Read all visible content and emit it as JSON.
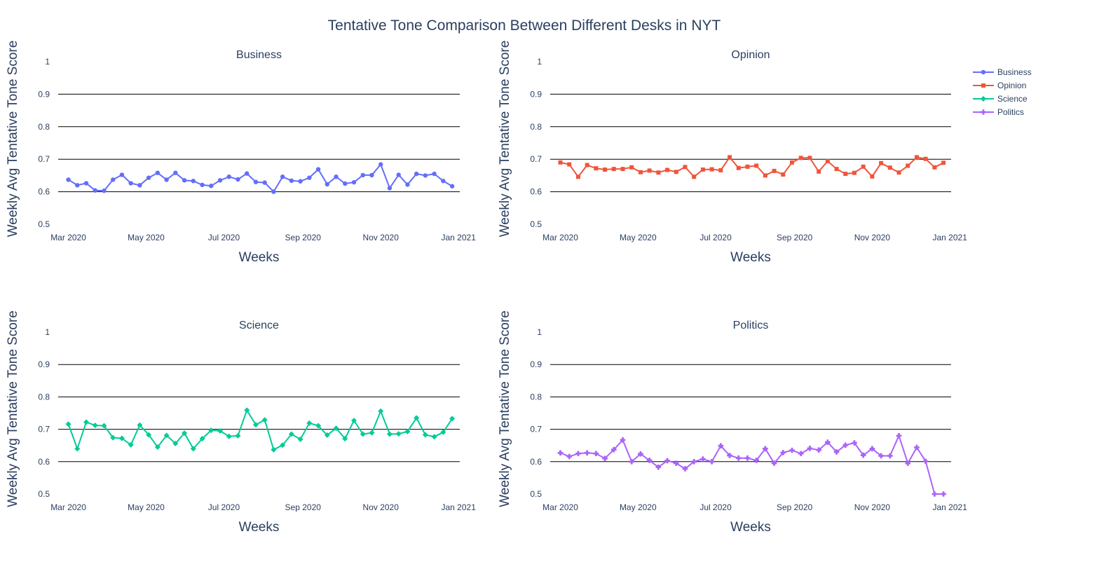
{
  "title": "Tentative Tone Comparison Between Different Desks in NYT",
  "legend": {
    "placement": "top-right",
    "items": [
      {
        "name": "Business",
        "color": "#636efa",
        "marker": "circle"
      },
      {
        "name": "Opinion",
        "color": "#ef553b",
        "marker": "square"
      },
      {
        "name": "Science",
        "color": "#00cc96",
        "marker": "diamond"
      },
      {
        "name": "Politics",
        "color": "#ab63fa",
        "marker": "cross"
      }
    ]
  },
  "chart_data": [
    {
      "type": "line",
      "title": "Business",
      "xlabel": "Weeks",
      "ylabel": "Weekly Avg Tentative Tone Score",
      "ylim": [
        0.5,
        1
      ],
      "yticks": [
        "0.5",
        "0.6",
        "0.7",
        "0.8",
        "0.9",
        "1"
      ],
      "xticks": [
        "Mar 2020",
        "May 2020",
        "Jul 2020",
        "Sep 2020",
        "Nov 2020",
        "Jan 2021"
      ],
      "grid": true,
      "x": [
        "2020-03-01",
        "2020-03-08",
        "2020-03-15",
        "2020-03-22",
        "2020-03-29",
        "2020-04-05",
        "2020-04-12",
        "2020-04-19",
        "2020-04-26",
        "2020-05-03",
        "2020-05-10",
        "2020-05-17",
        "2020-05-24",
        "2020-05-31",
        "2020-06-07",
        "2020-06-14",
        "2020-06-21",
        "2020-06-28",
        "2020-07-05",
        "2020-07-12",
        "2020-07-19",
        "2020-07-26",
        "2020-08-02",
        "2020-08-09",
        "2020-08-16",
        "2020-08-23",
        "2020-08-30",
        "2020-09-06",
        "2020-09-13",
        "2020-09-20",
        "2020-09-27",
        "2020-10-04",
        "2020-10-11",
        "2020-10-18",
        "2020-10-25",
        "2020-11-01",
        "2020-11-08",
        "2020-11-15",
        "2020-11-22",
        "2020-11-29",
        "2020-12-06",
        "2020-12-13",
        "2020-12-20",
        "2020-12-27"
      ],
      "series": [
        {
          "name": "Business",
          "color": "#636efa",
          "marker": "circle",
          "values": [
            0.637,
            0.62,
            0.626,
            0.604,
            0.603,
            0.637,
            0.652,
            0.626,
            0.62,
            0.643,
            0.658,
            0.637,
            0.658,
            0.635,
            0.633,
            0.621,
            0.618,
            0.635,
            0.646,
            0.638,
            0.656,
            0.63,
            0.628,
            0.6,
            0.646,
            0.634,
            0.632,
            0.643,
            0.669,
            0.623,
            0.646,
            0.625,
            0.629,
            0.651,
            0.651,
            0.684,
            0.611,
            0.652,
            0.622,
            0.655,
            0.65,
            0.655,
            0.633,
            0.617
          ]
        }
      ]
    },
    {
      "type": "line",
      "title": "Opinion",
      "xlabel": "Weeks",
      "ylabel": "Weekly Avg Tentative Tone Score",
      "ylim": [
        0.5,
        1
      ],
      "yticks": [
        "0.5",
        "0.6",
        "0.7",
        "0.8",
        "0.9",
        "1"
      ],
      "xticks": [
        "Mar 2020",
        "May 2020",
        "Jul 2020",
        "Sep 2020",
        "Nov 2020",
        "Jan 2021"
      ],
      "grid": true,
      "x": [
        "2020-03-01",
        "2020-03-08",
        "2020-03-15",
        "2020-03-22",
        "2020-03-29",
        "2020-04-05",
        "2020-04-12",
        "2020-04-19",
        "2020-04-26",
        "2020-05-03",
        "2020-05-10",
        "2020-05-17",
        "2020-05-24",
        "2020-05-31",
        "2020-06-07",
        "2020-06-14",
        "2020-06-21",
        "2020-06-28",
        "2020-07-05",
        "2020-07-12",
        "2020-07-19",
        "2020-07-26",
        "2020-08-02",
        "2020-08-09",
        "2020-08-16",
        "2020-08-23",
        "2020-08-30",
        "2020-09-06",
        "2020-09-13",
        "2020-09-20",
        "2020-09-27",
        "2020-10-04",
        "2020-10-11",
        "2020-10-18",
        "2020-10-25",
        "2020-11-01",
        "2020-11-08",
        "2020-11-15",
        "2020-11-22",
        "2020-11-29",
        "2020-12-06",
        "2020-12-13",
        "2020-12-20",
        "2020-12-27"
      ],
      "series": [
        {
          "name": "Opinion",
          "color": "#ef553b",
          "marker": "square",
          "values": [
            0.69,
            0.684,
            0.646,
            0.682,
            0.672,
            0.668,
            0.67,
            0.67,
            0.675,
            0.66,
            0.665,
            0.659,
            0.667,
            0.661,
            0.676,
            0.646,
            0.668,
            0.669,
            0.666,
            0.706,
            0.673,
            0.677,
            0.68,
            0.65,
            0.664,
            0.653,
            0.69,
            0.704,
            0.704,
            0.662,
            0.694,
            0.67,
            0.655,
            0.658,
            0.677,
            0.647,
            0.688,
            0.674,
            0.659,
            0.68,
            0.706,
            0.701,
            0.675,
            0.689
          ]
        }
      ]
    },
    {
      "type": "line",
      "title": "Science",
      "xlabel": "Weeks",
      "ylabel": "Weekly Avg Tentative Tone Score",
      "ylim": [
        0.5,
        1
      ],
      "yticks": [
        "0.5",
        "0.6",
        "0.7",
        "0.8",
        "0.9",
        "1"
      ],
      "xticks": [
        "Mar 2020",
        "May 2020",
        "Jul 2020",
        "Sep 2020",
        "Nov 2020",
        "Jan 2021"
      ],
      "grid": true,
      "x": [
        "2020-03-01",
        "2020-03-08",
        "2020-03-15",
        "2020-03-22",
        "2020-03-29",
        "2020-04-05",
        "2020-04-12",
        "2020-04-19",
        "2020-04-26",
        "2020-05-03",
        "2020-05-10",
        "2020-05-17",
        "2020-05-24",
        "2020-05-31",
        "2020-06-07",
        "2020-06-14",
        "2020-06-21",
        "2020-06-28",
        "2020-07-05",
        "2020-07-12",
        "2020-07-19",
        "2020-07-26",
        "2020-08-02",
        "2020-08-09",
        "2020-08-16",
        "2020-08-23",
        "2020-08-30",
        "2020-09-06",
        "2020-09-13",
        "2020-09-20",
        "2020-09-27",
        "2020-10-04",
        "2020-10-11",
        "2020-10-18",
        "2020-10-25",
        "2020-11-01",
        "2020-11-08",
        "2020-11-15",
        "2020-11-22",
        "2020-11-29",
        "2020-12-06",
        "2020-12-13",
        "2020-12-20",
        "2020-12-27"
      ],
      "series": [
        {
          "name": "Science",
          "color": "#00cc96",
          "marker": "diamond",
          "values": [
            0.716,
            0.64,
            0.722,
            0.712,
            0.711,
            0.674,
            0.672,
            0.652,
            0.713,
            0.683,
            0.645,
            0.681,
            0.656,
            0.688,
            0.64,
            0.671,
            0.697,
            0.695,
            0.678,
            0.68,
            0.759,
            0.714,
            0.729,
            0.637,
            0.651,
            0.685,
            0.669,
            0.719,
            0.711,
            0.682,
            0.703,
            0.671,
            0.727,
            0.685,
            0.689,
            0.756,
            0.685,
            0.686,
            0.693,
            0.735,
            0.683,
            0.677,
            0.691,
            0.733
          ]
        }
      ]
    },
    {
      "type": "line",
      "title": "Politics",
      "xlabel": "Weeks",
      "ylabel": "Weekly Avg Tentative Tone Score",
      "ylim": [
        0.5,
        1
      ],
      "yticks": [
        "0.5",
        "0.6",
        "0.7",
        "0.8",
        "0.9",
        "1"
      ],
      "xticks": [
        "Mar 2020",
        "May 2020",
        "Jul 2020",
        "Sep 2020",
        "Nov 2020",
        "Jan 2021"
      ],
      "grid": true,
      "x": [
        "2020-03-01",
        "2020-03-08",
        "2020-03-15",
        "2020-03-22",
        "2020-03-29",
        "2020-04-05",
        "2020-04-12",
        "2020-04-19",
        "2020-04-26",
        "2020-05-03",
        "2020-05-10",
        "2020-05-17",
        "2020-05-24",
        "2020-05-31",
        "2020-06-07",
        "2020-06-14",
        "2020-06-21",
        "2020-06-28",
        "2020-07-05",
        "2020-07-12",
        "2020-07-19",
        "2020-07-26",
        "2020-08-02",
        "2020-08-09",
        "2020-08-16",
        "2020-08-23",
        "2020-08-30",
        "2020-09-06",
        "2020-09-13",
        "2020-09-20",
        "2020-09-27",
        "2020-10-04",
        "2020-10-11",
        "2020-10-18",
        "2020-10-25",
        "2020-11-01",
        "2020-11-08",
        "2020-11-15",
        "2020-11-22",
        "2020-11-29",
        "2020-12-06",
        "2020-12-13",
        "2020-12-20",
        "2020-12-27"
      ],
      "series": [
        {
          "name": "Politics",
          "color": "#ab63fa",
          "marker": "cross",
          "values": [
            0.627,
            0.616,
            0.625,
            0.627,
            0.625,
            0.61,
            0.637,
            0.667,
            0.6,
            0.624,
            0.604,
            0.583,
            0.603,
            0.595,
            0.578,
            0.6,
            0.608,
            0.6,
            0.649,
            0.619,
            0.611,
            0.611,
            0.604,
            0.64,
            0.595,
            0.628,
            0.635,
            0.625,
            0.641,
            0.636,
            0.66,
            0.63,
            0.651,
            0.658,
            0.62,
            0.64,
            0.618,
            0.618,
            0.68,
            0.595,
            0.644,
            0.601,
            0.5,
            0.5
          ]
        }
      ]
    }
  ]
}
